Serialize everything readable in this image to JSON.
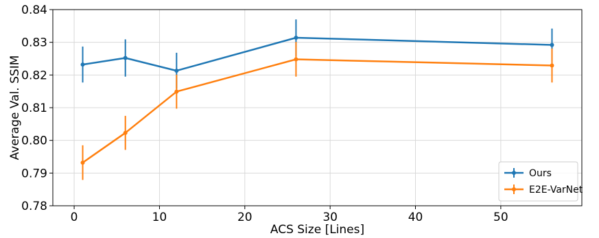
{
  "chart_data": {
    "type": "line",
    "xlabel": "ACS Size [Lines]",
    "ylabel": "Average Val. SSIM",
    "xlim": [
      -2.5,
      59.5
    ],
    "ylim": [
      0.78,
      0.84
    ],
    "xticks": [
      0,
      10,
      20,
      30,
      40,
      50
    ],
    "yticks": [
      0.78,
      0.79,
      0.8,
      0.81,
      0.82,
      0.83,
      0.84
    ],
    "ytick_labels": [
      "0.78",
      "0.79",
      "0.80",
      "0.81",
      "0.82",
      "0.83",
      "0.84"
    ],
    "grid": true,
    "legend_position": "bottom-right",
    "x": [
      1,
      6,
      12,
      26,
      56
    ],
    "series": [
      {
        "name": "Ours",
        "color": "#1f77b4",
        "values": [
          0.8232,
          0.8252,
          0.8213,
          0.8314,
          0.8292
        ],
        "err": [
          0.0055,
          0.0057,
          0.0055,
          0.0056,
          0.005
        ]
      },
      {
        "name": "E2E-VarNet",
        "color": "#ff7f0e",
        "values": [
          0.7932,
          0.8023,
          0.8149,
          0.8248,
          0.8229
        ],
        "err": [
          0.0053,
          0.0052,
          0.0052,
          0.0053,
          0.0052
        ]
      }
    ]
  }
}
